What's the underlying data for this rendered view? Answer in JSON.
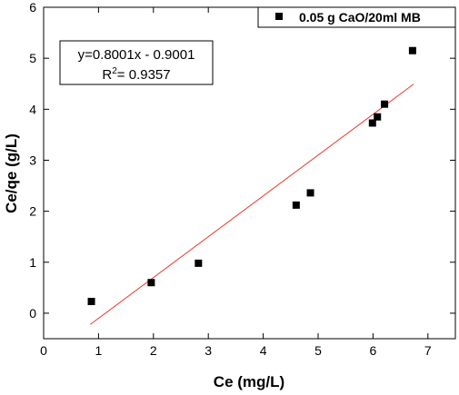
{
  "chart_data": {
    "type": "scatter",
    "xlabel": "Ce (mg/L)",
    "ylabel": "Ce/qe (g/L)",
    "xlim": [
      0,
      7.5
    ],
    "ylim": [
      -0.5,
      6
    ],
    "xticks": [
      "0",
      "1",
      "2",
      "3",
      "4",
      "5",
      "6",
      "7"
    ],
    "yticks": [
      "0",
      "1",
      "2",
      "3",
      "4",
      "5",
      "6"
    ],
    "legend_position": "top-right",
    "series": [
      {
        "name": "0.05 g CaO/20ml MB",
        "marker": "square",
        "color": "#000000",
        "points": [
          {
            "x": 0.87,
            "y": 0.23
          },
          {
            "x": 1.96,
            "y": 0.6
          },
          {
            "x": 2.82,
            "y": 0.98
          },
          {
            "x": 4.6,
            "y": 2.12
          },
          {
            "x": 4.86,
            "y": 2.36
          },
          {
            "x": 5.99,
            "y": 3.73
          },
          {
            "x": 6.08,
            "y": 3.85
          },
          {
            "x": 6.21,
            "y": 4.1
          },
          {
            "x": 6.72,
            "y": 5.15
          }
        ]
      }
    ],
    "fit_line": {
      "slope": 0.8001,
      "intercept": -0.9001,
      "x_range": [
        0.85,
        6.74
      ],
      "color": "#e8382a"
    },
    "annotation": {
      "equation": "y=0.8001x - 0.9001",
      "r2_label": "R",
      "r2_sup": "2",
      "r2_value": "= 0.9357"
    }
  }
}
